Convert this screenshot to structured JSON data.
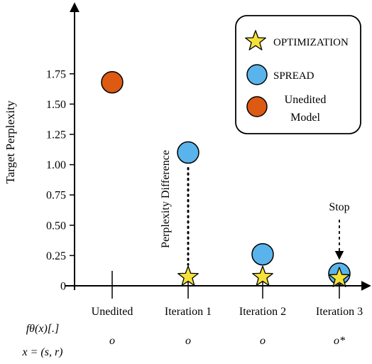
{
  "chart_data": {
    "type": "scatter",
    "ylabel": "Target Perplexity",
    "yticks": [
      {
        "value": 0,
        "label": "0"
      },
      {
        "value": 0.25,
        "label": "0.25"
      },
      {
        "value": 0.5,
        "label": "0.50"
      },
      {
        "value": 0.75,
        "label": "0.75"
      },
      {
        "value": 1.0,
        "label": "1.00"
      },
      {
        "value": 1.25,
        "label": "1.25"
      },
      {
        "value": 1.5,
        "label": "1.50"
      },
      {
        "value": 1.75,
        "label": "1.75"
      }
    ],
    "ylim": [
      0,
      1.95
    ],
    "categories": [
      "Unedited",
      "Iteration 1",
      "Iteration 2",
      "Iteration 3"
    ],
    "series": [
      {
        "name": "OPTIMIZATION",
        "marker": "star",
        "color": "#f5e13a",
        "values": [
          null,
          0.08,
          0.08,
          0.07
        ]
      },
      {
        "name": "SPREAD",
        "marker": "circle",
        "color": "#5ab4ec",
        "values": [
          null,
          1.1,
          0.26,
          0.1
        ]
      },
      {
        "name": "Unedited Model",
        "marker": "circle",
        "color": "#dd5a12",
        "values": [
          1.68,
          null,
          null,
          null
        ]
      }
    ],
    "legend": {
      "placement": "top-right",
      "entries": [
        {
          "marker": "star",
          "color": "#f5e13a",
          "line1": "OPTIMIZATION",
          "line2": ""
        },
        {
          "marker": "circle",
          "color": "#5ab4ec",
          "line1": "SPREAD",
          "line2": ""
        },
        {
          "marker": "circle",
          "color": "#dd5a12",
          "line1": "Unedited",
          "line2": "Model"
        }
      ]
    },
    "annotations": {
      "difference_label": "Perplexity Difference",
      "stop_label": "Stop"
    },
    "bottom_labels": {
      "row1": "fθ(x)[.]",
      "row2": "x = (s, r)",
      "outputs": [
        "o",
        "o",
        "o",
        "o*"
      ]
    }
  }
}
